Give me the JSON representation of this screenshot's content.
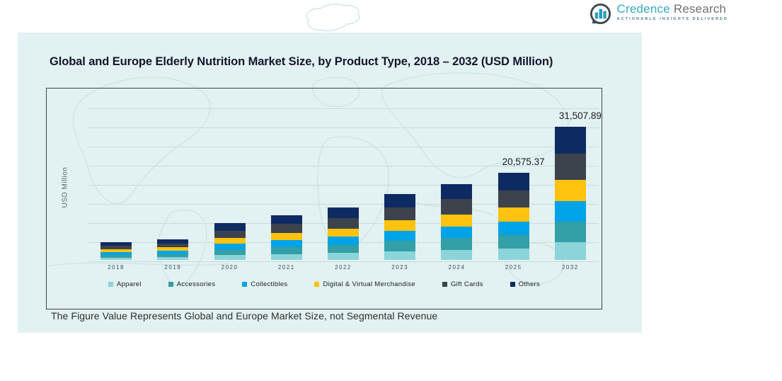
{
  "brand": {
    "name_primary": "Credence",
    "name_secondary": "Research",
    "tagline": "Actionable Insights Delivered",
    "colors": {
      "primary_teal": "#34a8c6",
      "secondary_gray": "#6f6f6f",
      "icon_dark": "#3e4a56",
      "icon_teal": "#2e9fa6",
      "icon_blue": "#2196d6"
    }
  },
  "chart": {
    "title": "Global and Europe Elderly Nutrition Market Size, by Product Type, 2018 – 2032 (USD Million)",
    "y_axis_label": "USD Million",
    "footnote": "The Figure Value Represents Global and Europe Market Size, not Segmental Revenue",
    "panel_bg": "#e2f1f1"
  },
  "chart_data": {
    "type": "bar",
    "stacked": true,
    "title": "Global and Europe Elderly Nutrition Market Size, by Product Type, 2018 – 2032 (USD Million)",
    "xlabel": "",
    "ylabel": "USD Million",
    "categories": [
      "2018",
      "2019",
      "2020",
      "2021",
      "2022",
      "2023",
      "2024",
      "2025",
      "2032"
    ],
    "series": [
      {
        "name": "Apparel",
        "color": "#8bd4da",
        "values": [
          556,
          657,
          1159,
          1427,
          1662,
          2084,
          2405,
          2757,
          4222
        ]
      },
      {
        "name": "Accessories",
        "color": "#339fa6",
        "values": [
          643,
          760,
          1341,
          1651,
          1922,
          2410,
          2782,
          3189,
          4884
        ]
      },
      {
        "name": "Collectibles",
        "color": "#00a3e8",
        "values": [
          631,
          745,
          1315,
          1619,
          1885,
          2364,
          2728,
          3127,
          4789
        ]
      },
      {
        "name": "Digital & Virtual Merchandise",
        "color": "#ffc20e",
        "values": [
          668,
          789,
          1393,
          1715,
          1996,
          2504,
          2890,
          3313,
          5073
        ]
      },
      {
        "name": "Gift Cards",
        "color": "#3d434c",
        "values": [
          818,
          965,
          1704,
          2098,
          2443,
          3063,
          3536,
          4053,
          6207
        ]
      },
      {
        "name": "Others",
        "color": "#0e2a63",
        "values": [
          834,
          984,
          1738,
          2140,
          2492,
          3125,
          3609,
          4136.37,
          6332.89
        ]
      }
    ],
    "annotations": [
      {
        "category": "2025",
        "text": "20,575.37"
      },
      {
        "category": "2032",
        "text": "31,507.89"
      }
    ],
    "totals_labeled": {
      "2025": 20575.37,
      "2032": 31507.89
    },
    "ylim": [
      0,
      32000
    ],
    "grid": true,
    "legend_position": "bottom"
  }
}
